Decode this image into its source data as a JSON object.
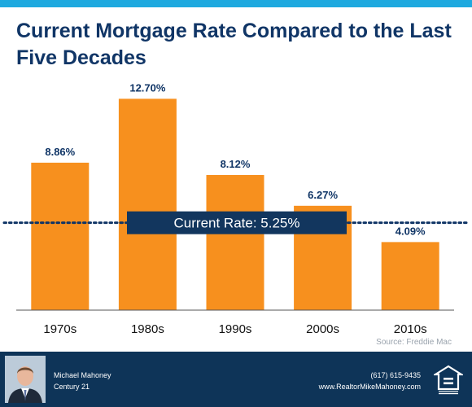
{
  "colors": {
    "bar": "#f7901e",
    "title": "#103566",
    "banner": "#12365e",
    "footer": "#0e3458",
    "accent": "#1ea9df"
  },
  "header": {
    "title": "Current Mortgage Rate Compared to the Last Five Decades"
  },
  "chart_data": {
    "type": "bar",
    "title": "Current Mortgage Rate Compared to the Last Five Decades",
    "categories": [
      "1970s",
      "1980s",
      "1990s",
      "2000s",
      "2010s"
    ],
    "values": [
      8.86,
      12.7,
      8.12,
      6.27,
      4.09
    ],
    "value_labels": [
      "8.86%",
      "12.70%",
      "8.12%",
      "6.27%",
      "4.09%"
    ],
    "unit": "%",
    "ylim": [
      0,
      13.5
    ],
    "grid": false,
    "reference_line": {
      "value": 5.25,
      "label": "Current Rate: 5.25%",
      "style": "dotted"
    },
    "source": "Source: Freddie Mac"
  },
  "footer": {
    "agent_name": "Michael Mahoney",
    "company": "Century 21",
    "phone": "(617) 615-9435",
    "website": "www.RealtorMikeMahoney.com",
    "logo_text": "EQUAL HOUSING OPPORTUNITY",
    "logo_icon": "equal-housing-icon",
    "photo_icon": "agent-photo"
  }
}
